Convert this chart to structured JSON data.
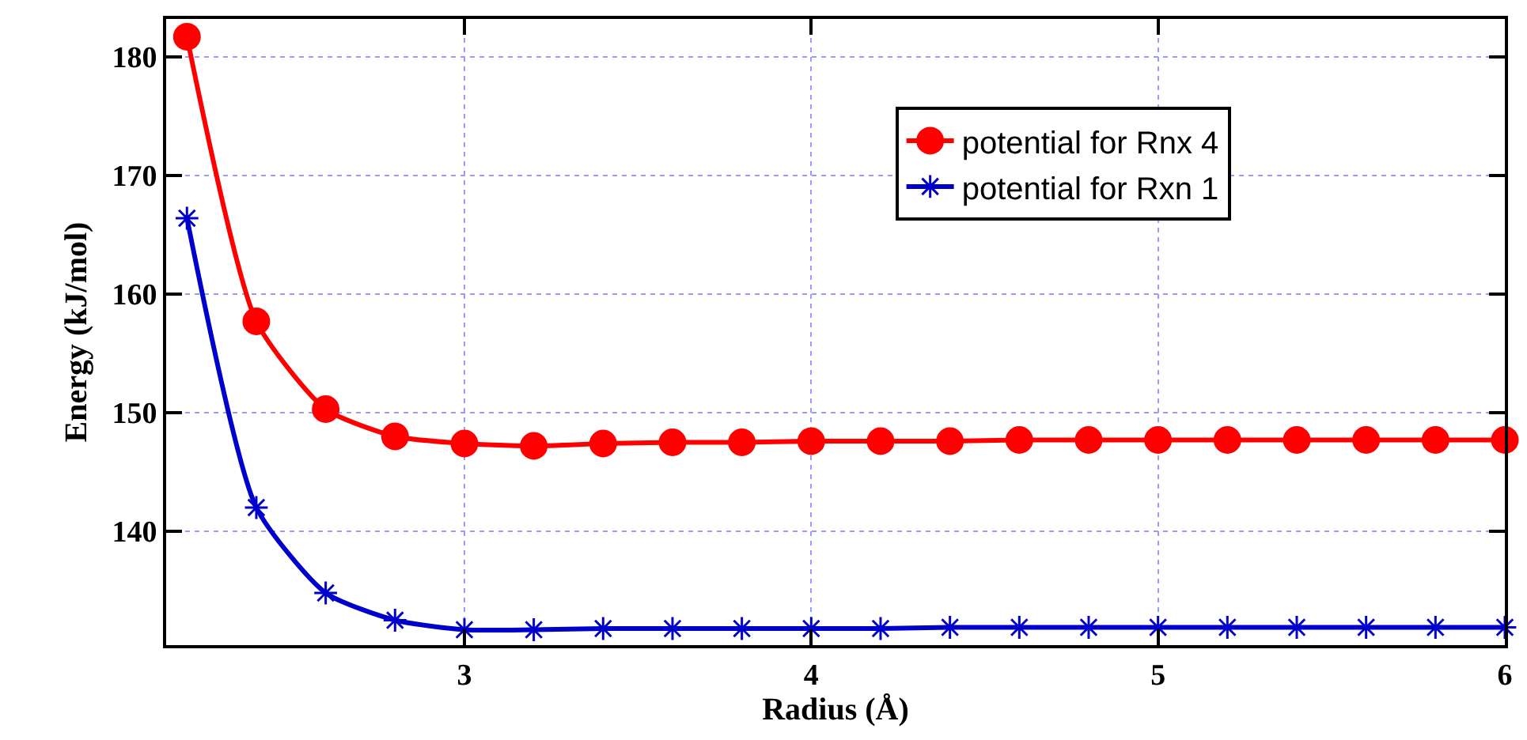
{
  "chart_data": {
    "type": "line",
    "xlabel": "Radius (Å)",
    "ylabel": "Energy (kJ/mol)",
    "x": [
      2.2,
      2.4,
      2.6,
      2.8,
      3.0,
      3.2,
      3.4,
      3.6,
      3.8,
      4.0,
      4.2,
      4.4,
      4.6,
      4.8,
      5.0,
      5.2,
      5.4,
      5.6,
      5.8,
      6.0
    ],
    "series": [
      {
        "name": "potential for Rnx 4",
        "color": "#ff0000",
        "marker": "circle",
        "values": [
          181.7,
          157.7,
          150.3,
          148.0,
          147.4,
          147.2,
          147.4,
          147.5,
          147.5,
          147.6,
          147.6,
          147.6,
          147.7,
          147.7,
          147.7,
          147.7,
          147.7,
          147.7,
          147.7,
          147.7
        ]
      },
      {
        "name": "potential for Rxn 1",
        "color": "#0000cc",
        "marker": "cross",
        "values": [
          166.4,
          142.0,
          134.8,
          132.5,
          131.7,
          131.7,
          131.8,
          131.8,
          131.8,
          131.8,
          131.8,
          131.9,
          131.9,
          131.9,
          131.9,
          131.9,
          131.9,
          131.9,
          131.9,
          131.9
        ]
      }
    ],
    "xlim": [
      2.14,
      6.0
    ],
    "xticks": [
      3,
      4,
      5,
      6
    ],
    "ylim": [
      130.4,
      183.2
    ],
    "yticks": [
      140,
      150,
      160,
      170,
      180
    ],
    "grid": true,
    "legend": "top right",
    "line_style": "solid"
  }
}
